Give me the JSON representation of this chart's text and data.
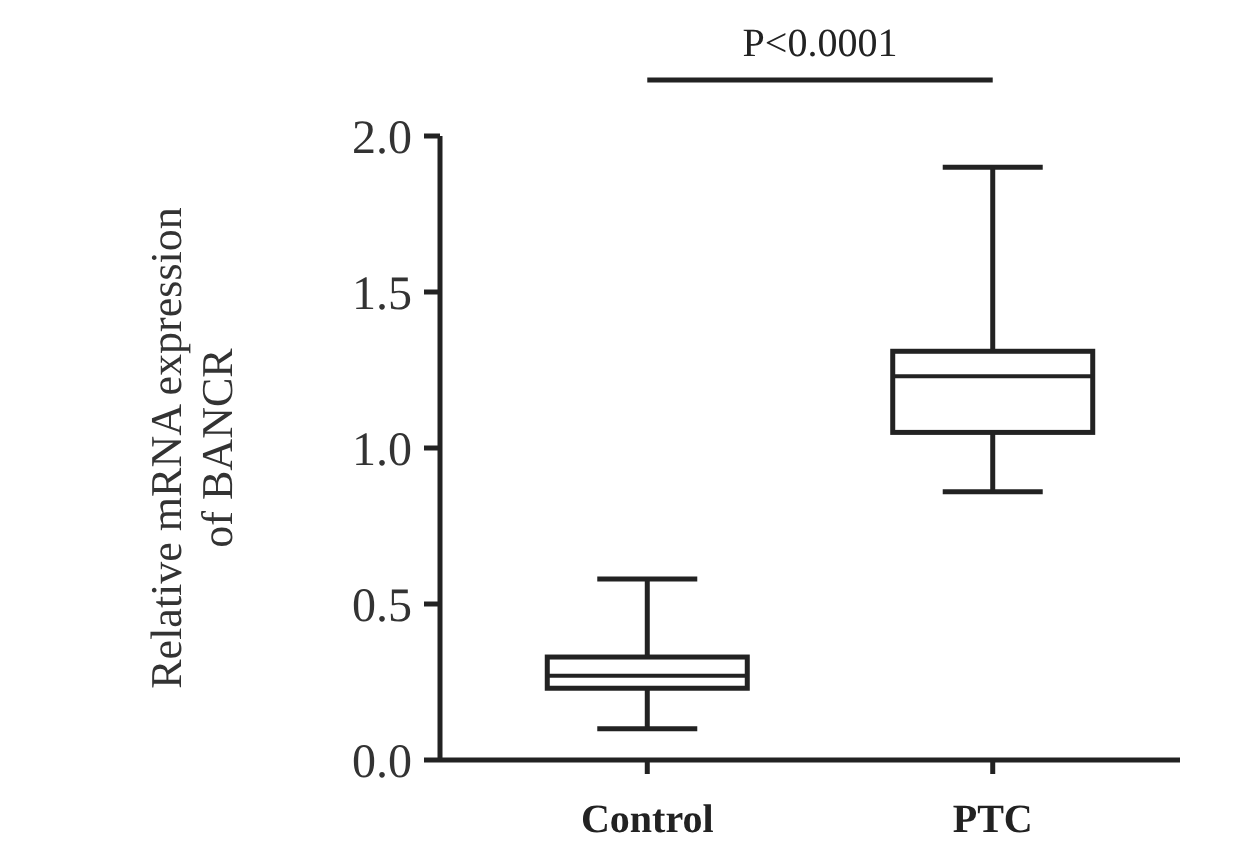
{
  "chart_data": {
    "type": "box",
    "ylabel": "Relative mRNA expression of BANCR",
    "categories": [
      "Control",
      "PTC"
    ],
    "boxes": [
      {
        "low": 0.1,
        "q1": 0.23,
        "median": 0.27,
        "q3": 0.33,
        "high": 0.58
      },
      {
        "low": 0.86,
        "q1": 1.05,
        "median": 1.23,
        "q3": 1.31,
        "high": 1.9
      }
    ],
    "ylim": [
      0,
      2
    ],
    "yticks": [
      {
        "value": 0,
        "label": "0.0"
      },
      {
        "value": 0.5,
        "label": "0.5"
      },
      {
        "value": 1,
        "label": "1.0"
      },
      {
        "value": 1.5,
        "label": "1.5"
      },
      {
        "value": 2,
        "label": "2.0"
      }
    ],
    "annotations": [
      "P<0.0001"
    ]
  }
}
